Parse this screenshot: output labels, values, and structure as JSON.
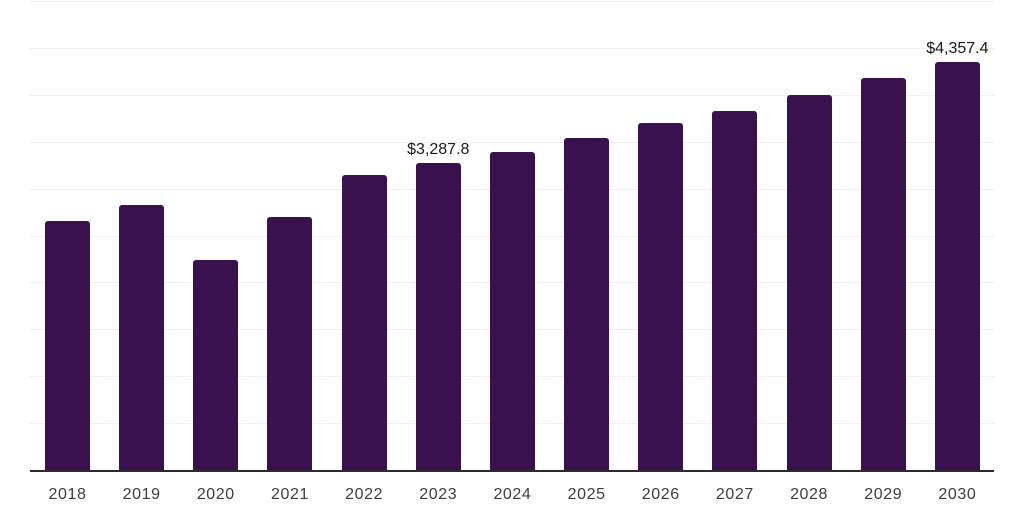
{
  "chart_data": {
    "type": "bar",
    "title": "",
    "xlabel": "",
    "ylabel": "",
    "categories": [
      "2018",
      "2019",
      "2020",
      "2021",
      "2022",
      "2023",
      "2024",
      "2025",
      "2026",
      "2027",
      "2028",
      "2029",
      "2030"
    ],
    "values": [
      2670,
      2840,
      2245,
      2705,
      3160,
      3287.8,
      3405,
      3555,
      3705,
      3840,
      4010,
      4185,
      4357.4
    ],
    "data_labels": [
      {
        "category": "2023",
        "text": "$3,287.8"
      },
      {
        "category": "2030",
        "text": "$4,357.4"
      }
    ],
    "ylim": [
      0,
      5000
    ],
    "gridline_step": 500,
    "grid": true,
    "legend": "none",
    "colors": {
      "bar": "#38114e",
      "gridline": "#f0f0f0",
      "axis_line": "#2b2b2b",
      "tick_label": "#3d3d3d",
      "data_label": "#1a1a1a",
      "background": "#ffffff"
    }
  }
}
